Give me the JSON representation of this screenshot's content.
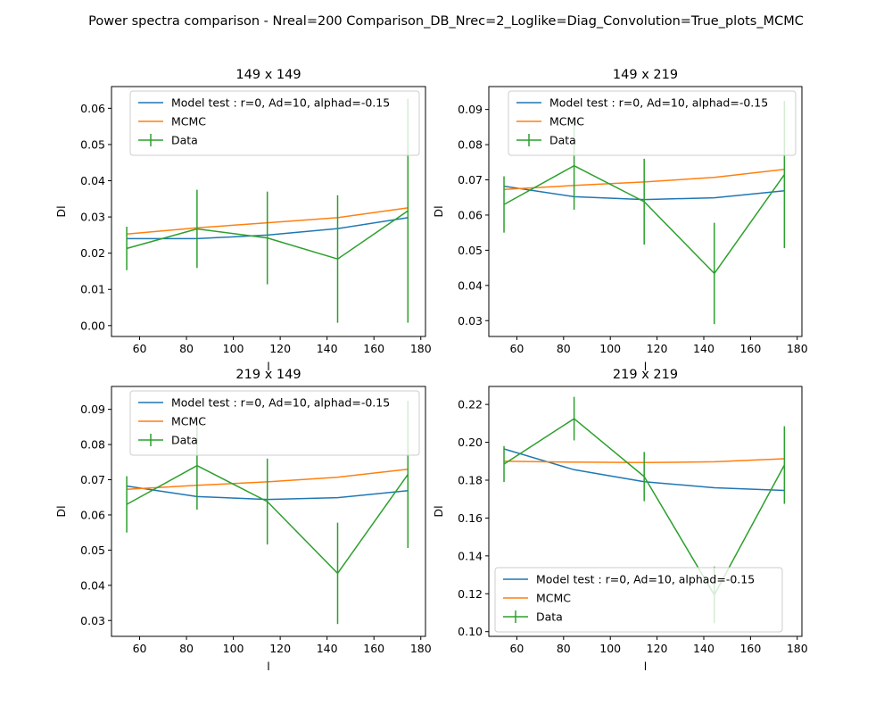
{
  "figure": {
    "title": "Power spectra comparison - Nreal=200 Comparison_DB_Nrec=2_Loglike=Diag_Convolution=True_plots_MCMC"
  },
  "colors": {
    "model": "#1f77b4",
    "mcmc": "#ff7f0e",
    "data": "#2ca02c"
  },
  "chart_data": [
    {
      "type": "line",
      "title": "149 x 149",
      "xlabel": "l",
      "ylabel": "Dl",
      "xlim": [
        48,
        182
      ],
      "ylim": [
        -0.003,
        0.066
      ],
      "xticks": [
        60,
        80,
        100,
        120,
        140,
        160,
        180
      ],
      "yticks": [
        0.0,
        0.01,
        0.02,
        0.03,
        0.04,
        0.05,
        0.06
      ],
      "ytick_labels": [
        "0.00",
        "0.01",
        "0.02",
        "0.03",
        "0.04",
        "0.05",
        "0.06"
      ],
      "legend_position": "upper right",
      "x": [
        54.5,
        84.5,
        114.5,
        144.5,
        174.5
      ],
      "series": [
        {
          "name": "Model test : r=0, Ad=10, alphad=-0.15",
          "color": "model",
          "values": [
            0.024,
            0.024,
            0.025,
            0.0268,
            0.0298
          ]
        },
        {
          "name": "MCMC",
          "color": "mcmc",
          "values": [
            0.0253,
            0.027,
            0.0284,
            0.0298,
            0.0325
          ]
        },
        {
          "name": "Data",
          "color": "data",
          "values": [
            0.0213,
            0.0267,
            0.0242,
            0.0184,
            0.0317
          ],
          "errors": [
            0.006,
            0.0108,
            0.0128,
            0.0176,
            0.0309
          ]
        }
      ]
    },
    {
      "type": "line",
      "title": "149 x 219",
      "xlabel": "l",
      "ylabel": "Dl",
      "xlim": [
        48,
        182
      ],
      "ylim": [
        0.0255,
        0.0965
      ],
      "xticks": [
        60,
        80,
        100,
        120,
        140,
        160,
        180
      ],
      "yticks": [
        0.03,
        0.04,
        0.05,
        0.06,
        0.07,
        0.08,
        0.09
      ],
      "ytick_labels": [
        "0.03",
        "0.04",
        "0.05",
        "0.06",
        "0.07",
        "0.08",
        "0.09"
      ],
      "legend_position": "upper right",
      "x": [
        54.5,
        84.5,
        114.5,
        144.5,
        174.5
      ],
      "series": [
        {
          "name": "Model test : r=0, Ad=10, alphad=-0.15",
          "color": "model",
          "values": [
            0.0682,
            0.0652,
            0.0644,
            0.0649,
            0.0669
          ]
        },
        {
          "name": "MCMC",
          "color": "mcmc",
          "values": [
            0.0673,
            0.0684,
            0.0694,
            0.0707,
            0.073
          ]
        },
        {
          "name": "Data",
          "color": "data",
          "values": [
            0.063,
            0.074,
            0.0638,
            0.0434,
            0.0715
          ],
          "errors": [
            0.008,
            0.0125,
            0.0122,
            0.0144,
            0.0209
          ]
        }
      ]
    },
    {
      "type": "line",
      "title": "219 x 149",
      "xlabel": "l",
      "ylabel": "Dl",
      "xlim": [
        48,
        182
      ],
      "ylim": [
        0.0255,
        0.0965
      ],
      "xticks": [
        60,
        80,
        100,
        120,
        140,
        160,
        180
      ],
      "yticks": [
        0.03,
        0.04,
        0.05,
        0.06,
        0.07,
        0.08,
        0.09
      ],
      "ytick_labels": [
        "0.03",
        "0.04",
        "0.05",
        "0.06",
        "0.07",
        "0.08",
        "0.09"
      ],
      "legend_position": "upper right",
      "x": [
        54.5,
        84.5,
        114.5,
        144.5,
        174.5
      ],
      "series": [
        {
          "name": "Model test : r=0, Ad=10, alphad=-0.15",
          "color": "model",
          "values": [
            0.0682,
            0.0652,
            0.0644,
            0.0649,
            0.0669
          ]
        },
        {
          "name": "MCMC",
          "color": "mcmc",
          "values": [
            0.0673,
            0.0684,
            0.0694,
            0.0707,
            0.073
          ]
        },
        {
          "name": "Data",
          "color": "data",
          "values": [
            0.063,
            0.074,
            0.0638,
            0.0434,
            0.0715
          ],
          "errors": [
            0.008,
            0.0125,
            0.0122,
            0.0144,
            0.0209
          ]
        }
      ]
    },
    {
      "type": "line",
      "title": "219 x 219",
      "xlabel": "l",
      "ylabel": "Dl",
      "xlim": [
        48,
        182
      ],
      "ylim": [
        0.0975,
        0.2295
      ],
      "xticks": [
        60,
        80,
        100,
        120,
        140,
        160,
        180
      ],
      "yticks": [
        0.1,
        0.12,
        0.14,
        0.16,
        0.18,
        0.2,
        0.22
      ],
      "ytick_labels": [
        "0.10",
        "0.12",
        "0.14",
        "0.16",
        "0.18",
        "0.20",
        "0.22"
      ],
      "legend_position": "lower left",
      "x": [
        54.5,
        84.5,
        114.5,
        144.5,
        174.5
      ],
      "series": [
        {
          "name": "Model test : r=0, Ad=10, alphad=-0.15",
          "color": "model",
          "values": [
            0.1965,
            0.1855,
            0.1792,
            0.176,
            0.1746
          ]
        },
        {
          "name": "MCMC",
          "color": "mcmc",
          "values": [
            0.19,
            0.1895,
            0.1893,
            0.1897,
            0.1913
          ]
        },
        {
          "name": "Data",
          "color": "data",
          "values": [
            0.1885,
            0.2125,
            0.1819,
            0.1194,
            0.188
          ],
          "errors": [
            0.0095,
            0.0115,
            0.013,
            0.015,
            0.0205
          ]
        }
      ]
    }
  ]
}
